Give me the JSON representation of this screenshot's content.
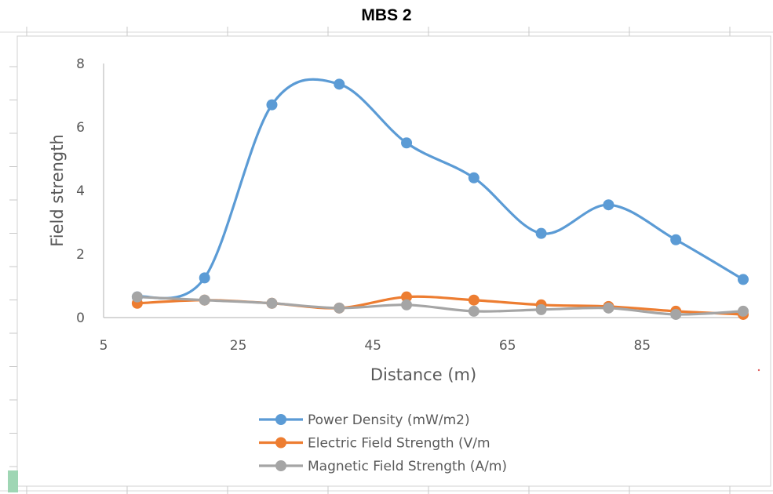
{
  "page_title": "MBS 2",
  "chart_data": {
    "type": "line",
    "title": "",
    "xlabel": "Distance (m)",
    "ylabel": "Field strength",
    "xlim": [
      5,
      100
    ],
    "ylim": [
      0,
      8
    ],
    "x_ticks": [
      5,
      25,
      45,
      65,
      85
    ],
    "y_ticks": [
      0,
      2,
      4,
      6,
      8
    ],
    "grid": false,
    "smooth": true,
    "legend_position": "bottom",
    "series": [
      {
        "name": "Power Density (mW/m2)",
        "color": "#5b9bd5",
        "x": [
          10,
          20,
          30,
          40,
          50,
          60,
          70,
          80,
          90,
          100
        ],
        "values": [
          0.65,
          1.25,
          6.7,
          7.35,
          5.5,
          4.4,
          2.65,
          3.55,
          2.45,
          1.2
        ]
      },
      {
        "name": "Electric Field Strength (V/m",
        "color": "#ed7d31",
        "x": [
          10,
          20,
          30,
          40,
          50,
          60,
          70,
          80,
          90,
          100
        ],
        "values": [
          0.45,
          0.55,
          0.45,
          0.3,
          0.65,
          0.55,
          0.4,
          0.35,
          0.2,
          0.1
        ]
      },
      {
        "name": "Magnetic Field Strength (A/m)",
        "color": "#a5a5a5",
        "x": [
          10,
          20,
          30,
          40,
          50,
          60,
          70,
          80,
          90,
          100
        ],
        "values": [
          0.65,
          0.55,
          0.45,
          0.3,
          0.4,
          0.2,
          0.25,
          0.3,
          0.1,
          0.2
        ]
      }
    ]
  }
}
